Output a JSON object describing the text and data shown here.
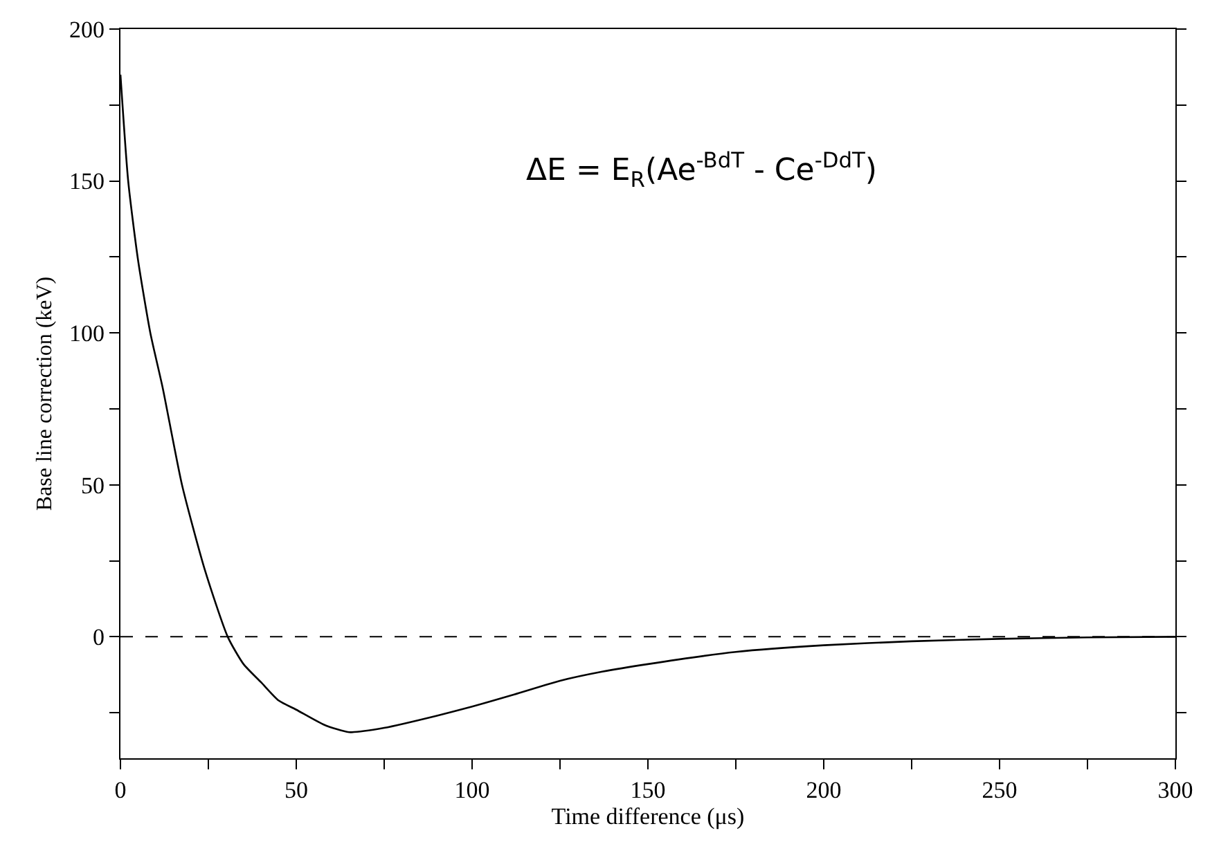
{
  "chart_data": {
    "type": "line",
    "xlabel": "Time difference (μs)",
    "ylabel": "Base line correction (keV)",
    "annotations": [
      "ΔE = E$_{R}$(Ae$^{-BdT}$ - Ce$^{-DdT}$)"
    ],
    "x": [
      0,
      2.2,
      5,
      8.5,
      12,
      17.5,
      24,
      30.5,
      35,
      40,
      45,
      50,
      58,
      65,
      75,
      90,
      100,
      112,
      125,
      137,
      150,
      175,
      200,
      225,
      250,
      275,
      300
    ],
    "series": [
      {
        "color": "#000000",
        "values": [
          185,
          150,
          124,
          100,
          82,
          50,
          22,
          0,
          -9,
          -15,
          -21,
          -24,
          -29,
          -31.4,
          -30,
          -26,
          -23,
          -19,
          -14.5,
          -11.5,
          -9,
          -5,
          -2.8,
          -1.5,
          -0.7,
          -0.2,
          0
        ]
      }
    ],
    "xlim": [
      0,
      300
    ],
    "ylim": [
      -40,
      200
    ],
    "xticks": [
      0,
      {
        "value": 25,
        "label": null
      },
      50,
      {
        "value": 75,
        "label": null
      },
      100,
      {
        "value": 125,
        "label": null
      },
      150,
      {
        "value": 175,
        "label": null
      },
      200,
      {
        "value": 225,
        "label": null
      },
      250,
      {
        "value": 275,
        "label": null
      },
      300
    ],
    "yticks": [
      {
        "value": -25,
        "label": null
      },
      0,
      {
        "value": 25,
        "label": null
      },
      50,
      {
        "value": 75,
        "label": null
      },
      100,
      {
        "value": 125,
        "label": null
      },
      150,
      {
        "value": 175,
        "label": null
      },
      200
    ],
    "ref_lines": [
      {
        "axis": "y",
        "value": 0,
        "color": "#000000",
        "line_style": "dashed"
      }
    ],
    "marker": "none",
    "line_style": "solid"
  }
}
